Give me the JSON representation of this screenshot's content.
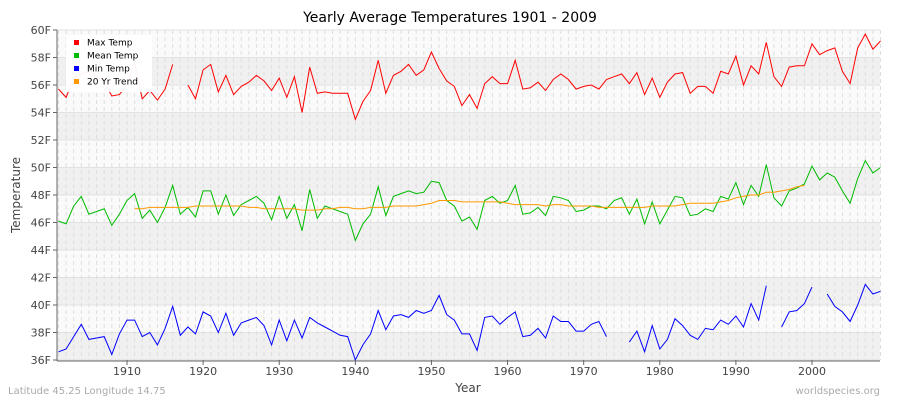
{
  "chart_data": {
    "type": "line",
    "title": "Yearly Average Temperatures 1901 - 2009",
    "xlabel": "Year",
    "ylabel": "Temperature",
    "xlim": [
      1901,
      2009
    ],
    "ylim": [
      36,
      60
    ],
    "x_ticks": [
      1910,
      1920,
      1930,
      1940,
      1950,
      1960,
      1970,
      1980,
      1990,
      2000
    ],
    "y_ticks": [
      "36F",
      "38F",
      "40F",
      "42F",
      "44F",
      "46F",
      "48F",
      "50F",
      "52F",
      "54F",
      "56F",
      "58F",
      "60F"
    ],
    "grid": true,
    "legend_position": "top-left",
    "start_year": 1901,
    "series": [
      {
        "name": "Max Temp",
        "color": "#ff0000",
        "start": 1901,
        "values": [
          55.7,
          55.1,
          56.5,
          56.8,
          57.0,
          56.6,
          56.2,
          55.2,
          55.3,
          56.0,
          57.6,
          55.0,
          55.6,
          54.9,
          55.7,
          57.5,
          null,
          56.0,
          55.0,
          57.1,
          57.5,
          55.5,
          56.7,
          55.3,
          55.9,
          56.2,
          56.7,
          56.3,
          55.6,
          56.5,
          55.1,
          56.6,
          54.0,
          57.3,
          55.4,
          55.5,
          55.4,
          55.4,
          55.4,
          53.5,
          54.8,
          55.6,
          57.8,
          55.4,
          56.7,
          57.0,
          57.5,
          56.7,
          57.1,
          58.4,
          57.2,
          56.3,
          55.9,
          54.5,
          55.3,
          54.3,
          56.1,
          56.6,
          56.1,
          56.1,
          57.8,
          55.7,
          55.8,
          56.2,
          55.6,
          56.4,
          56.8,
          56.4,
          55.7,
          55.9,
          56.0,
          55.7,
          56.4,
          56.6,
          56.8,
          56.1,
          56.9,
          55.3,
          56.5,
          55.1,
          56.2,
          56.8,
          56.9,
          55.4,
          55.9,
          55.9,
          55.4,
          57.0,
          56.8,
          58.1,
          56.0,
          57.4,
          56.8,
          59.1,
          56.6,
          55.9,
          57.3,
          57.4,
          57.4,
          59.0,
          58.2,
          58.5,
          58.7,
          57.0,
          56.1,
          58.7,
          59.7,
          58.6,
          59.2
        ]
      },
      {
        "name": "Mean Temp",
        "color": "#00bb00",
        "start": 1901,
        "values": [
          46.1,
          45.9,
          47.2,
          47.9,
          46.6,
          46.8,
          47.0,
          45.8,
          46.6,
          47.6,
          48.1,
          46.3,
          46.9,
          46.0,
          47.1,
          48.7,
          46.6,
          47.1,
          46.4,
          48.3,
          48.3,
          46.6,
          48.0,
          46.5,
          47.3,
          47.6,
          47.9,
          47.4,
          46.2,
          47.9,
          46.3,
          47.3,
          45.4,
          48.4,
          46.3,
          47.2,
          47.0,
          46.8,
          46.6,
          44.7,
          45.9,
          46.6,
          48.6,
          46.5,
          47.9,
          48.1,
          48.3,
          48.1,
          48.2,
          49.0,
          48.9,
          47.6,
          47.2,
          46.1,
          46.4,
          45.5,
          47.6,
          47.9,
          47.4,
          47.6,
          48.7,
          46.6,
          46.7,
          47.1,
          46.5,
          47.9,
          47.8,
          47.6,
          46.8,
          46.9,
          47.2,
          47.2,
          47.0,
          47.6,
          47.8,
          46.6,
          47.7,
          45.9,
          47.5,
          45.9,
          46.9,
          47.9,
          47.8,
          46.5,
          46.6,
          47.0,
          46.8,
          47.9,
          47.7,
          48.9,
          47.3,
          48.7,
          47.9,
          50.2,
          47.8,
          47.2,
          48.3,
          48.5,
          48.8,
          50.1,
          49.1,
          49.6,
          49.3,
          48.3,
          47.4,
          49.2,
          50.5,
          49.6,
          50.0
        ]
      },
      {
        "name": "Min Temp",
        "color": "#0000ff",
        "start": 1901,
        "values": [
          36.6,
          36.8,
          37.7,
          38.6,
          37.5,
          37.6,
          37.7,
          36.4,
          37.9,
          38.9,
          38.9,
          37.7,
          38.0,
          37.1,
          38.3,
          39.9,
          37.8,
          38.4,
          37.9,
          39.5,
          39.2,
          38.0,
          39.4,
          37.8,
          38.7,
          38.9,
          39.1,
          38.5,
          37.1,
          38.9,
          37.4,
          38.9,
          37.6,
          39.1,
          38.7,
          38.4,
          38.1,
          37.8,
          37.7,
          36.0,
          37.1,
          37.9,
          39.6,
          38.2,
          39.2,
          39.3,
          39.1,
          39.6,
          39.4,
          39.6,
          40.7,
          39.3,
          38.9,
          37.9,
          37.9,
          36.7,
          39.1,
          39.2,
          38.6,
          39.1,
          39.5,
          37.7,
          37.8,
          38.3,
          37.6,
          39.2,
          38.8,
          38.8,
          38.1,
          38.1,
          38.6,
          38.8,
          37.7,
          null,
          null,
          37.3,
          38.1,
          36.6,
          38.5,
          36.8,
          37.5,
          39.0,
          38.5,
          37.8,
          37.5,
          38.3,
          38.2,
          38.9,
          38.6,
          39.2,
          38.4,
          40.1,
          38.9,
          41.4,
          null,
          38.4,
          39.5,
          39.6,
          40.1,
          41.3,
          null,
          40.8,
          39.9,
          39.5,
          38.8,
          40.0,
          41.5,
          40.8,
          41.0
        ]
      },
      {
        "name": "20 Yr Trend",
        "color": "#ff9900",
        "start": 1911,
        "values": [
          47.0,
          47.0,
          47.1,
          47.1,
          47.1,
          47.1,
          47.1,
          47.1,
          47.2,
          47.2,
          47.2,
          47.2,
          47.2,
          47.2,
          47.2,
          47.1,
          47.1,
          47.0,
          47.0,
          47.0,
          47.0,
          47.0,
          46.9,
          46.9,
          46.9,
          47.0,
          47.0,
          47.1,
          47.1,
          47.0,
          47.0,
          47.1,
          47.1,
          47.1,
          47.2,
          47.2,
          47.2,
          47.2,
          47.3,
          47.4,
          47.6,
          47.6,
          47.6,
          47.5,
          47.5,
          47.5,
          47.5,
          47.5,
          47.5,
          47.4,
          47.3,
          47.3,
          47.3,
          47.3,
          47.2,
          47.3,
          47.3,
          47.2,
          47.2,
          47.2,
          47.2,
          47.1,
          47.1,
          47.1,
          47.1,
          47.1,
          47.1,
          47.1,
          47.2,
          47.2,
          47.2,
          47.2,
          47.3,
          47.4,
          47.4,
          47.4,
          47.4,
          47.5,
          47.6,
          47.8,
          47.9,
          48.0,
          48.0,
          48.2,
          48.2,
          48.3,
          48.4,
          48.6,
          48.7
        ]
      }
    ]
  },
  "footer": {
    "location": "Latitude 45.25 Longitude 14.75",
    "source": "worldspecies.org"
  }
}
